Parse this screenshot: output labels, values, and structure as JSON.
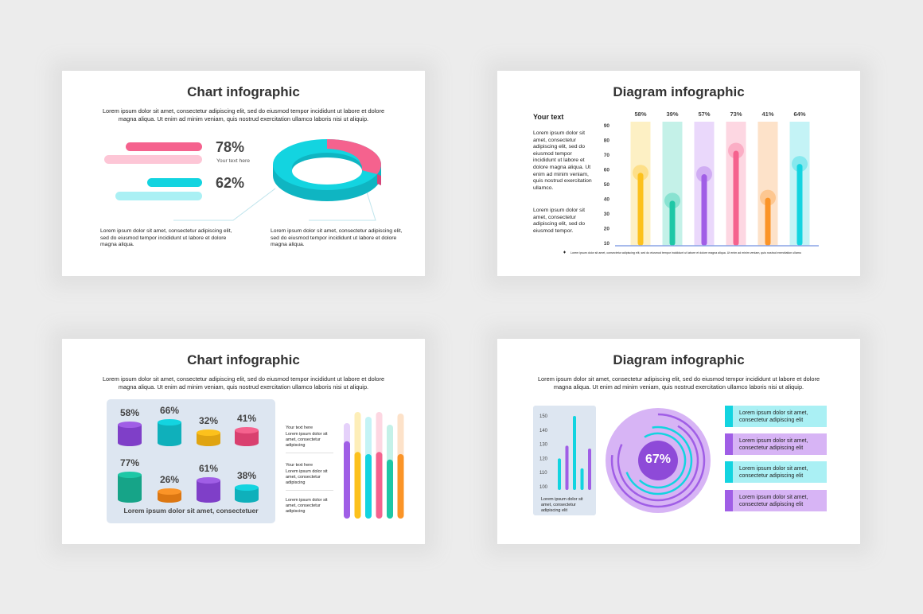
{
  "colors": {
    "pink": "#f5628e",
    "pink_light": "#fdc6d6",
    "cyan": "#13d4e0",
    "cyan_light": "#aaf0f4",
    "purple": "#a05ee6",
    "yellow": "#fcc11c",
    "orange": "#fb9427",
    "teal": "#1ec7a6"
  },
  "slides": [
    {
      "title": "Chart infographic",
      "desc": "Lorem ipsum dolor sit amet, consectetur adipiscing elit, sed do eiusmod tempor incididunt ut labore et dolore magna aliqua. Ut enim ad minim veniam, quis nostrud exercitation ullamco laboris nisi ut aliquip.",
      "stat1": "78%",
      "stat1_label": "Your text here",
      "stat2": "62%",
      "bottom_left": "Lorem ipsum dolor sit amet, consectetur adipiscing elit, sed do eiusmod tempor incididunt ut labore et dolore magna aliqua.",
      "bottom_right": "Lorem ipsum dolor sit amet, consectetur adipiscing elit, sed do eiusmod tempor incididunt ut labore et dolore magna aliqua."
    },
    {
      "title": "Diagram infographic",
      "side_heading": "Your text",
      "side_p1": "Lorem ipsum dolor sit amet, consectetur adipiscing elit, sed do eiusmod tempor incididunt ut labore et dolore magna aliqua. Ut enim ad minim veniam, quis nostrud exercitation ullamco.",
      "side_p2": "Lorem ipsum dolor sit amet, consectetur adipiscing elit, sed do eiusmod tempor.",
      "footnote": "Lorem ipsum dolor sit amet, consectetur adipiscing elit, sed do eiusmod tempor incididunt ut labore et dolore magna aliqua. Ut enim ad minim veniam, quis nostrud exercitation ullamco laboris nisi ut aliquip ex ea commodo consequat. Duis aute irure dolor in reprehenderit in voluptate velit esse cillum dolore eu fugiat nulla pariatur."
    },
    {
      "title": "Chart infographic",
      "desc": "Lorem ipsum dolor sit amet, consectetur adipiscing elit, sed do eiusmod tempor incididunt ut labore et dolore magna aliqua. Ut enim ad minim veniam, quis nostrud exercitation ullamco laboris nisi ut aliquip.",
      "panel_caption": "Lorem ipsum dolor sit amet, consectetuer",
      "notes": [
        {
          "title": "Your text here",
          "body": "Lorem ipsum dolor sit amet, consectetur adipiscing"
        },
        {
          "title": "Your text here",
          "body": "Lorem ipsum dolor sit amet, consectetur adipiscing"
        },
        {
          "title": "",
          "body": "Lorem ipsum dolor sit amet, consectetur adipiscing"
        }
      ]
    },
    {
      "title": "Diagram infographic",
      "desc": "Lorem ipsum dolor sit amet, consectetur adipiscing elit, sed do eiusmod tempor incididunt ut labore et dolore magna aliqua. Ut enim ad minim veniam, quis nostrud exercitation ullamco laboris nisi ut aliquip.",
      "mini_caption": "Lorem ipsum dolor sit amet, consectetur adipiscing elit",
      "center_value": "67%",
      "boxes": [
        "Lorem ipsum dolor sit amet, consectetur adipiscing elit",
        "Lorem ipsum dolor sit amet, consectetur adipiscing elit",
        "Lorem ipsum dolor sit amet, consectetur adipiscing elit",
        "Lorem ipsum dolor sit amet, consectetur adipiscing elit"
      ]
    }
  ],
  "chart_data": [
    {
      "type": "pie",
      "values": [
        78,
        62
      ],
      "series": [
        {
          "name": "Your text here",
          "value": 78
        }
      ]
    },
    {
      "type": "bar",
      "yticks": [
        90,
        80,
        70,
        60,
        50,
        40,
        30,
        20,
        10
      ],
      "ylim": [
        10,
        90
      ],
      "values": [
        58,
        39,
        57,
        73,
        41,
        64
      ],
      "labels": [
        "58%",
        "39%",
        "57%",
        "73%",
        "41%",
        "64%"
      ],
      "colors": [
        "#fcc11c",
        "#1ec7a6",
        "#a05ee6",
        "#f5628e",
        "#fb9427",
        "#13d4e0"
      ],
      "bg_colors": [
        "#fdf0c4",
        "#c4f1e8",
        "#ead8fb",
        "#fdd7e2",
        "#fde2c9",
        "#c4f3f6"
      ]
    },
    {
      "type": "bar",
      "values": [
        58,
        66,
        32,
        41,
        77,
        26,
        61,
        38
      ],
      "labels": [
        "58%",
        "66%",
        "32%",
        "41%",
        "77%",
        "26%",
        "61%",
        "38%"
      ],
      "colors": [
        "#a05ee6",
        "#13d4e0",
        "#fcc11c",
        "#f5628e",
        "#1ec7a6",
        "#fb9427",
        "#a05ee6",
        "#13d4e0"
      ]
    },
    {
      "type": "bar",
      "values": [
        0.72,
        0.62,
        0.6,
        0.62,
        0.55,
        0.6
      ],
      "colors": [
        "#a05ee6",
        "#fcc11c",
        "#13d4e0",
        "#f5628e",
        "#1ec7a6",
        "#fb9427"
      ]
    },
    {
      "type": "bar",
      "yticks": [
        150,
        140,
        130,
        120,
        110,
        100
      ],
      "values": [
        120,
        129,
        150,
        113,
        127
      ],
      "colors": [
        "#13d4e0",
        "#a05ee6",
        "#13d4e0",
        "#13d4e0",
        "#a05ee6"
      ]
    },
    {
      "type": "pie",
      "values": [
        67
      ],
      "labels": [
        "67%"
      ]
    }
  ]
}
